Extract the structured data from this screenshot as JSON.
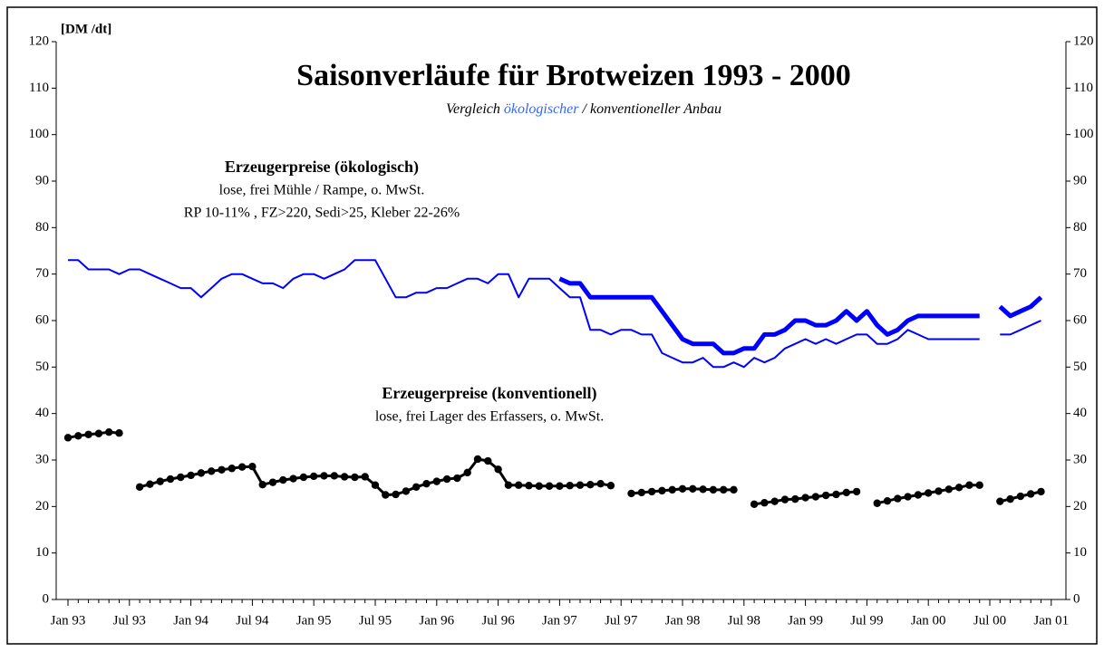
{
  "chart_data": {
    "type": "line",
    "title": "Saisonverläufe für Brotweizen 1993 - 2000",
    "subtitle_parts": [
      "Vergleich ",
      "ökologischer",
      " / konventioneller Anbau"
    ],
    "subtitle_colors": [
      "#000000",
      "#3366ff",
      "#000000"
    ],
    "y_label": "[DM /dt]",
    "annotations": [
      {
        "lines": [
          "Erzeugerpreise (ökologisch)",
          "lose, frei Mühle / Rampe, o. MwSt.",
          "RP 10-11% , FZ>220, Sedi>25, Kleber 22-26%"
        ],
        "color": "#0000ff"
      },
      {
        "lines": [
          "Erzeugerpreise (konventionell)",
          "lose, frei Lager des Erfassers, o. MwSt."
        ],
        "color": "#000000"
      }
    ],
    "categories": [
      "Jan 93",
      null,
      null,
      null,
      null,
      null,
      "Jul 93",
      null,
      null,
      null,
      null,
      null,
      "Jan 94",
      null,
      null,
      null,
      null,
      null,
      "Jul 94",
      null,
      null,
      null,
      null,
      null,
      "Jan 95",
      null,
      null,
      null,
      null,
      null,
      "Jul 95",
      null,
      null,
      null,
      null,
      null,
      "Jan 96",
      null,
      null,
      null,
      null,
      null,
      "Jul 96",
      null,
      null,
      null,
      null,
      null,
      "Jan 97",
      null,
      null,
      null,
      null,
      null,
      "Jul 97",
      null,
      null,
      null,
      null,
      null,
      "Jan 98",
      null,
      null,
      null,
      null,
      null,
      "Jul 98",
      null,
      null,
      null,
      null,
      null,
      "Jan 99",
      null,
      null,
      null,
      null,
      null,
      "Jul 99",
      null,
      null,
      null,
      null,
      null,
      "Jan 00",
      null,
      null,
      null,
      null,
      null,
      "Jul 00",
      null,
      null,
      null,
      null,
      null,
      "Jan 01"
    ],
    "series": [
      {
        "color": "#0000ff",
        "width": 2,
        "values": [
          73,
          73,
          71,
          71,
          71,
          70,
          71,
          71,
          70,
          69,
          68,
          67,
          67,
          65,
          67,
          69,
          70,
          70,
          69,
          68,
          68,
          67,
          69,
          70,
          70,
          69,
          70,
          71,
          73,
          73,
          73,
          69,
          65,
          65,
          66,
          66,
          67,
          67,
          68,
          69,
          69,
          68,
          70,
          70,
          65,
          69,
          69,
          69,
          67,
          65,
          65,
          58,
          58,
          57,
          58,
          58,
          57,
          57,
          53,
          52,
          51,
          51,
          52,
          50,
          50,
          51,
          50,
          52,
          51,
          52,
          54,
          55,
          56,
          55,
          56,
          55,
          56,
          57,
          57,
          55,
          55,
          56,
          58,
          57,
          56,
          56,
          56,
          56,
          56,
          56,
          null,
          57,
          57,
          58,
          59,
          60,
          null
        ]
      },
      {
        "color": "#0000ff",
        "width": 5,
        "values": [
          null,
          null,
          null,
          null,
          null,
          null,
          null,
          null,
          null,
          null,
          null,
          null,
          null,
          null,
          null,
          null,
          null,
          null,
          null,
          null,
          null,
          null,
          null,
          null,
          null,
          null,
          null,
          null,
          null,
          null,
          null,
          null,
          null,
          null,
          null,
          null,
          null,
          null,
          null,
          null,
          null,
          null,
          null,
          null,
          null,
          null,
          null,
          null,
          69,
          68,
          68,
          65,
          65,
          65,
          65,
          65,
          65,
          65,
          62,
          59,
          56,
          55,
          55,
          55,
          53,
          53,
          54,
          54,
          57,
          57,
          58,
          60,
          60,
          59,
          59,
          60,
          62,
          60,
          62,
          59,
          57,
          58,
          60,
          61,
          61,
          61,
          61,
          61,
          61,
          61,
          null,
          63,
          61,
          62,
          63,
          65,
          null
        ]
      },
      {
        "color": "#000000",
        "width": 3,
        "marker": "circle",
        "values": [
          34.8,
          35.2,
          35.5,
          35.7,
          36.0,
          35.8,
          null,
          24.2,
          24.8,
          25.4,
          25.9,
          26.3,
          26.7,
          27.2,
          27.6,
          27.9,
          28.2,
          28.5,
          28.6,
          24.7,
          25.2,
          25.7,
          26.0,
          26.3,
          26.5,
          26.6,
          26.6,
          26.4,
          26.3,
          26.4,
          24.6,
          22.5,
          22.6,
          23.3,
          24.2,
          24.9,
          25.4,
          25.9,
          26.1,
          27.3,
          30.2,
          29.8,
          28.0,
          24.6,
          24.6,
          24.5,
          24.4,
          24.4,
          24.4,
          24.5,
          24.6,
          24.7,
          24.9,
          24.5,
          null,
          22.8,
          23.0,
          23.2,
          23.4,
          23.6,
          23.8,
          23.8,
          23.7,
          23.6,
          23.6,
          23.6,
          null,
          20.5,
          20.8,
          21.1,
          21.5,
          21.6,
          21.9,
          22.1,
          22.4,
          22.6,
          23.0,
          23.2,
          null,
          20.7,
          21.2,
          21.7,
          22.1,
          22.5,
          22.9,
          23.3,
          23.7,
          24.1,
          24.6,
          24.6,
          null,
          21.1,
          21.6,
          22.2,
          22.7,
          23.2,
          null
        ]
      }
    ],
    "ylim": [
      0,
      120
    ],
    "yticks": [
      0,
      10,
      20,
      30,
      40,
      50,
      60,
      70,
      80,
      90,
      100,
      110,
      120
    ],
    "y2lim": [
      0,
      120
    ],
    "y2ticks": [
      0,
      10,
      20,
      30,
      40,
      50,
      60,
      70,
      80,
      90,
      100,
      110,
      120
    ]
  }
}
